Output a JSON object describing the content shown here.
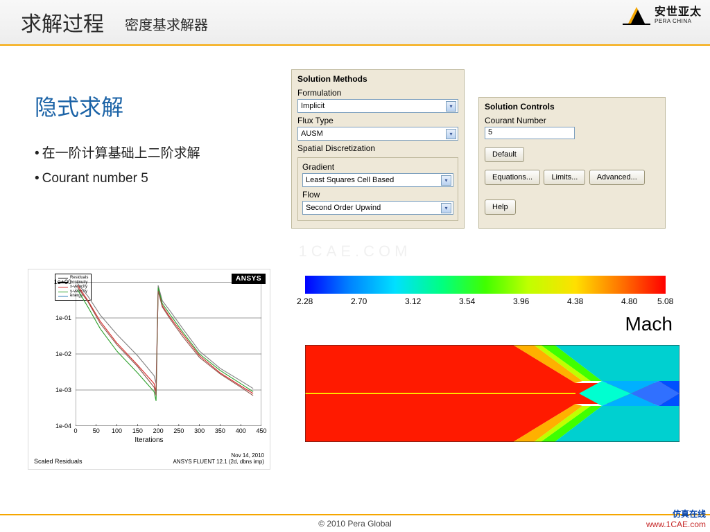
{
  "header": {
    "title_main": "求解过程",
    "title_sub": "密度基求解器",
    "logo_text": "安世亚太",
    "logo_sub": "PERA CHINA",
    "logo_colors": {
      "yellow": "#f5a600",
      "black": "#000000"
    }
  },
  "left": {
    "heading": "隐式求解",
    "bullets": [
      "在一阶计算基础上二阶求解",
      "Courant number 5"
    ],
    "heading_color": "#1a62a6"
  },
  "methods_panel": {
    "title": "Solution Methods",
    "formulation_label": "Formulation",
    "formulation_value": "Implicit",
    "flux_label": "Flux Type",
    "flux_value": "AUSM",
    "spatial_label": "Spatial Discretization",
    "gradient_label": "Gradient",
    "gradient_value": "Least Squares Cell Based",
    "flow_label": "Flow",
    "flow_value": "Second Order Upwind",
    "bg_color": "#eee8d8"
  },
  "controls_panel": {
    "title": "Solution Controls",
    "courant_label": "Courant Number",
    "courant_value": "5",
    "default_btn": "Default",
    "eq_btn": "Equations...",
    "limits_btn": "Limits...",
    "adv_btn": "Advanced...",
    "help_btn": "Help"
  },
  "residual_chart": {
    "type": "line",
    "badge": "ANSYS",
    "xlabel": "Iterations",
    "x_ticks": [
      0,
      50,
      100,
      150,
      200,
      250,
      300,
      350,
      400,
      450
    ],
    "y_ticks_text": [
      "1e+00",
      "1e-01",
      "1e-02",
      "1e-03",
      "1e-04"
    ],
    "y_log_exp": [
      0,
      -1,
      -2,
      -3,
      -4
    ],
    "legend": [
      {
        "label": "Residuals",
        "color": "#000000"
      },
      {
        "label": "continuity",
        "color": "#ffffff"
      },
      {
        "label": "x-velocity",
        "color": "#d62728"
      },
      {
        "label": "y-velocity",
        "color": "#2ca02c"
      },
      {
        "label": "energy",
        "color": "#1f77b4"
      }
    ],
    "series": [
      {
        "name": "continuity",
        "color": "#808080",
        "x": [
          5,
          30,
          60,
          100,
          150,
          190,
          195,
          200,
          210,
          230,
          260,
          300,
          350,
          400,
          430
        ],
        "y": [
          0.9,
          0.4,
          0.12,
          0.035,
          0.009,
          0.0025,
          0.0015,
          0.8,
          0.3,
          0.15,
          0.05,
          0.012,
          0.004,
          0.0018,
          0.0011
        ]
      },
      {
        "name": "x-velocity",
        "color": "#d62728",
        "x": [
          5,
          30,
          60,
          100,
          150,
          190,
          195,
          200,
          210,
          230,
          260,
          300,
          350,
          400,
          430
        ],
        "y": [
          0.8,
          0.3,
          0.08,
          0.02,
          0.005,
          0.0015,
          0.0009,
          0.6,
          0.22,
          0.1,
          0.035,
          0.009,
          0.003,
          0.0013,
          0.0008
        ]
      },
      {
        "name": "y-velocity",
        "color": "#2ca02c",
        "x": [
          5,
          30,
          60,
          100,
          150,
          190,
          195,
          200,
          210,
          230,
          260,
          300,
          350,
          400,
          430
        ],
        "y": [
          0.6,
          0.2,
          0.05,
          0.012,
          0.003,
          0.0009,
          0.0005,
          0.7,
          0.25,
          0.12,
          0.04,
          0.01,
          0.0035,
          0.0015,
          0.0009
        ]
      },
      {
        "name": "energy",
        "color": "#8c564b",
        "x": [
          5,
          30,
          60,
          100,
          150,
          190,
          195,
          200,
          210,
          230,
          260,
          300,
          350,
          400,
          430
        ],
        "y": [
          0.7,
          0.28,
          0.07,
          0.018,
          0.0045,
          0.0012,
          0.0007,
          0.55,
          0.2,
          0.09,
          0.03,
          0.008,
          0.0028,
          0.0012,
          0.0007
        ]
      }
    ],
    "footer_left": "Scaled Residuals",
    "footer_date": "Nov 14, 2010",
    "footer_right": "ANSYS FLUENT 12.1 (2d, dbns imp)"
  },
  "mach": {
    "label": "Mach",
    "colorbar_ticks": [
      2.28,
      2.7,
      3.12,
      3.54,
      3.96,
      4.38,
      4.8,
      5.08
    ],
    "colorbar_stops": [
      {
        "p": 0,
        "c": "#0000ff"
      },
      {
        "p": 12,
        "c": "#0080ff"
      },
      {
        "p": 25,
        "c": "#00e0ff"
      },
      {
        "p": 38,
        "c": "#00ff80"
      },
      {
        "p": 50,
        "c": "#40ff00"
      },
      {
        "p": 62,
        "c": "#c0ff00"
      },
      {
        "p": 75,
        "c": "#ffe000"
      },
      {
        "p": 88,
        "c": "#ff7000"
      },
      {
        "p": 100,
        "c": "#ff0000"
      }
    ],
    "field": {
      "inlet_yellow_line": "#ffe000",
      "regions": [
        {
          "poly": "0,0 300,0 390,55 540,55 540,85 390,85 300,140 0,140",
          "fill": "#ff1a00"
        },
        {
          "poly": "300,0 330,0 400,52 390,55",
          "fill": "#ffb000"
        },
        {
          "poly": "300,140 330,140 400,88 390,85",
          "fill": "#ffb000"
        },
        {
          "poly": "330,0 340,0 412,52 400,52",
          "fill": "#c0ff00"
        },
        {
          "poly": "330,140 340,140 412,88 400,88",
          "fill": "#c0ff00"
        },
        {
          "poly": "340,0 360,0 428,52 412,52",
          "fill": "#40ff00"
        },
        {
          "poly": "340,140 360,140 428,88 412,88",
          "fill": "#40ff00"
        },
        {
          "poly": "360,0 540,0 540,52 428,52",
          "fill": "#00d0d0"
        },
        {
          "poly": "360,140 540,140 540,88 428,88",
          "fill": "#00d0d0"
        },
        {
          "poly": "428,52 470,70 428,88 395,70",
          "fill": "#00ffd0"
        },
        {
          "poly": "470,70 510,52 540,70 510,88",
          "fill": "#3070ff"
        },
        {
          "poly": "428,52 510,52 470,70",
          "fill": "#00b0ff"
        },
        {
          "poly": "428,88 510,88 470,70",
          "fill": "#00b0ff"
        },
        {
          "poly": "510,52 540,52 540,70",
          "fill": "#0050ff"
        },
        {
          "poly": "510,88 540,88 540,70",
          "fill": "#0050ff"
        }
      ]
    }
  },
  "footer": {
    "copyright": "© 2010 Pera Global"
  },
  "watermark_center": "1CAE.COM",
  "watermark_right": {
    "line1": "仿真在线",
    "line2": "www.1CAE.com"
  }
}
